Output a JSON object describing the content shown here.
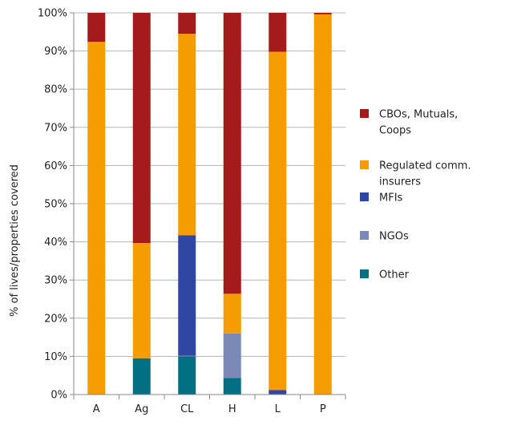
{
  "chart_data": {
    "type": "bar",
    "stacked": true,
    "categories": [
      "A",
      "Ag",
      "CL",
      "H",
      "L",
      "P"
    ],
    "ylabel": "% of lives/properties covered",
    "ylim": [
      0,
      100
    ],
    "yticks": [
      "0%",
      "10%",
      "20%",
      "30%",
      "40%",
      "50%",
      "60%",
      "70%",
      "80%",
      "90%",
      "100%"
    ],
    "grid": true,
    "legend_position": "right",
    "series": [
      {
        "name": "Other",
        "color": "#007082",
        "values": [
          0,
          9.5,
          10,
          4.3,
          0,
          0
        ]
      },
      {
        "name": "NGOs",
        "color": "#7c88b6",
        "values": [
          0,
          0,
          0.2,
          11.7,
          0,
          0
        ]
      },
      {
        "name": "MFIs",
        "color": "#2f46a3",
        "values": [
          0,
          0,
          31.5,
          0,
          1.2,
          0
        ]
      },
      {
        "name": "Regulated comm. insurers",
        "color": "#f59c00",
        "values": [
          92.4,
          30.2,
          52.8,
          10.4,
          88.6,
          99.6
        ]
      },
      {
        "name": "CBOs, Mutuals, Coops",
        "color": "#a31b1b",
        "values": [
          7.6,
          60.3,
          5.5,
          73.6,
          10.2,
          0.4
        ]
      }
    ],
    "legend": [
      {
        "lines": [
          "CBOs, Mutuals,",
          "Coops"
        ],
        "color": "#a31b1b"
      },
      {
        "lines": [
          "Regulated comm.",
          "insurers"
        ],
        "color": "#f59c00"
      },
      {
        "lines": [
          "MFIs"
        ],
        "color": "#2f46a3"
      },
      {
        "lines": [
          "NGOs"
        ],
        "color": "#7c88b6"
      },
      {
        "lines": [
          "Other"
        ],
        "color": "#007082"
      }
    ]
  }
}
